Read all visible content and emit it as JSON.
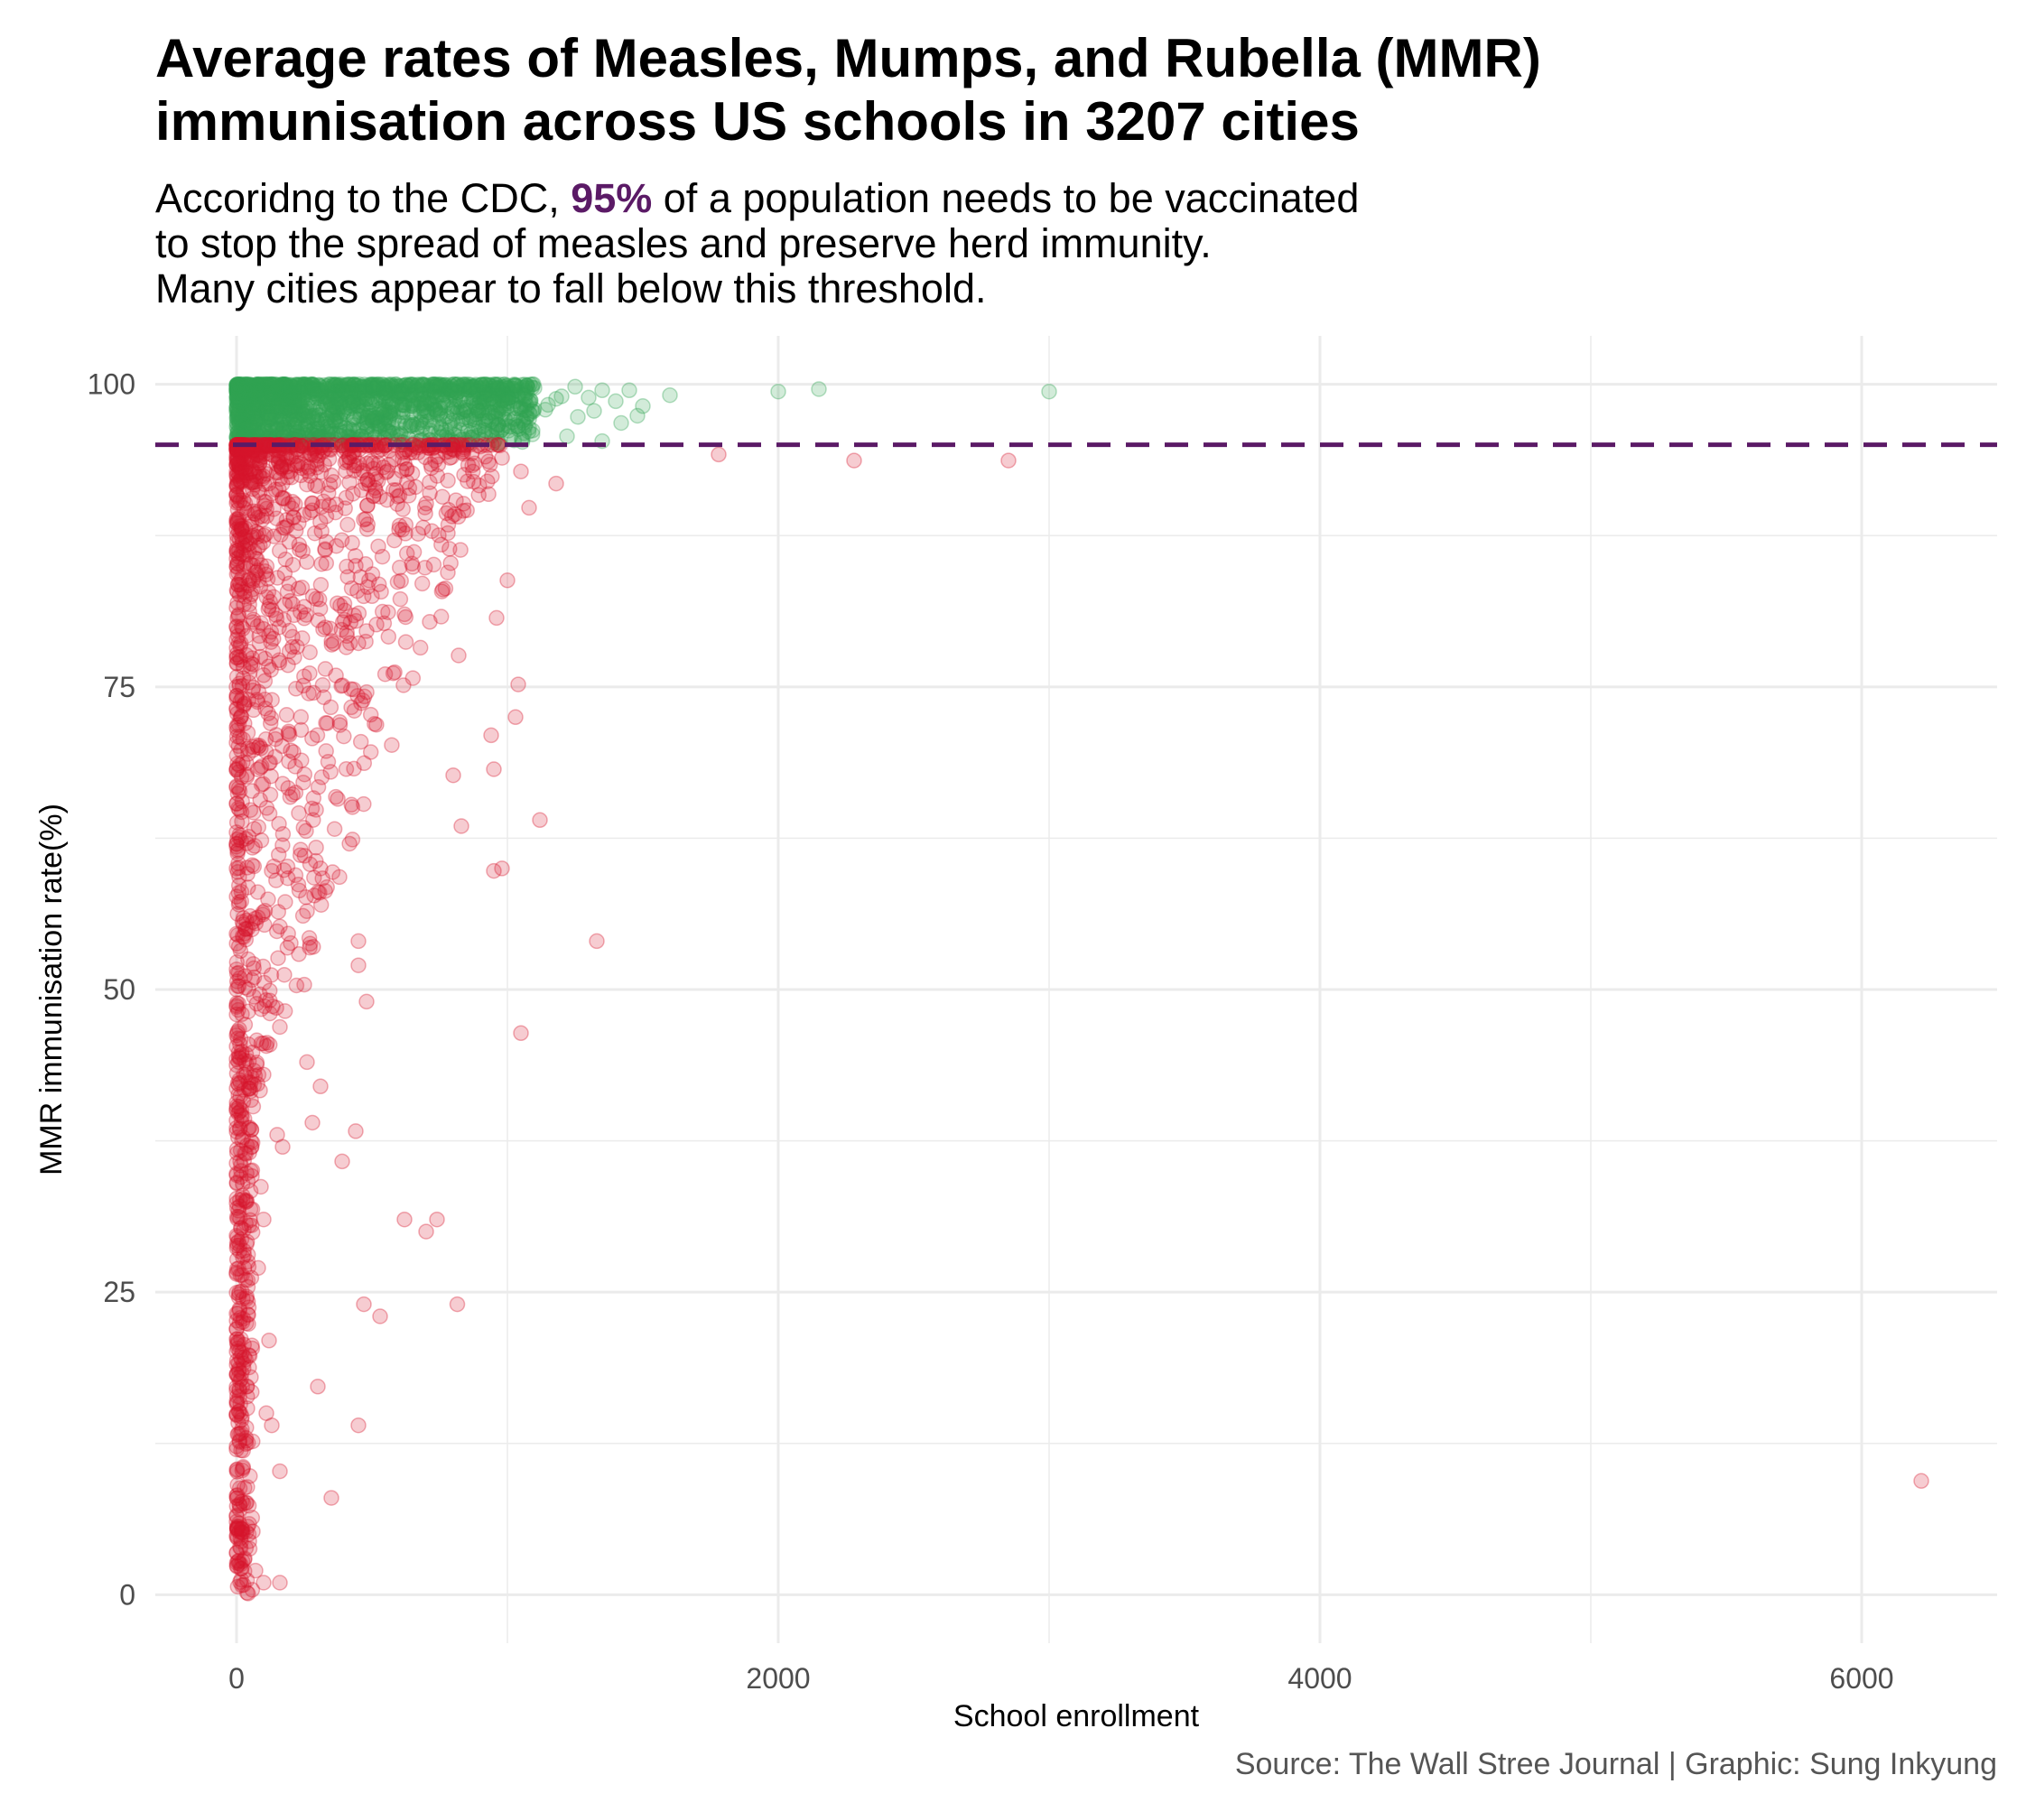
{
  "title": {
    "line1": "Average rates of Measles, Mumps, and Rubella (MMR)",
    "line2": "immunisation across US schools in 3207 cities"
  },
  "subtitle": {
    "line1_pre": "Accoridng to the CDC, ",
    "line1_highlight": "95%",
    "line1_post": " of a population needs to be vaccinated",
    "line2": "to stop the spread of measles and preserve herd immunity.",
    "line3": "Many cities appear to fall below this threshold."
  },
  "caption": "Source: The Wall Stree Journal | Graphic: Sung Inkyung",
  "colors": {
    "above": "#31a354",
    "below": "#d7152c",
    "threshold": "#5b1a66",
    "grid": "#ebebeb"
  },
  "chart_data": {
    "type": "scatter",
    "xlabel": "School enrollment",
    "ylabel": "MMR immunisation rate(%)",
    "xlim": [
      -300,
      6500
    ],
    "ylim": [
      -4,
      104
    ],
    "x_ticks": [
      0,
      2000,
      4000,
      6000
    ],
    "x_tick_labels": [
      "0",
      "2000",
      "4000",
      "6000"
    ],
    "y_ticks": [
      0,
      25,
      50,
      75,
      100
    ],
    "y_tick_labels": [
      "0",
      "25",
      "50",
      "75",
      "100"
    ],
    "threshold": 95,
    "grid": true,
    "legend": "none",
    "series": [
      {
        "group": "above",
        "points": [
          [
            1600,
            99.1
          ],
          [
            2000,
            99.4
          ],
          [
            2150,
            99.6
          ],
          [
            3000,
            99.4
          ],
          [
            1500,
            98.2
          ],
          [
            1450,
            99.5
          ],
          [
            1400,
            98.6
          ],
          [
            1350,
            99.5
          ],
          [
            1300,
            98.9
          ],
          [
            1250,
            99.8
          ],
          [
            1200,
            99.0
          ],
          [
            1150,
            98.3
          ],
          [
            1100,
            99.7
          ],
          [
            1050,
            97.2
          ],
          [
            1000,
            99.9
          ],
          [
            1350,
            95.3
          ],
          [
            1220,
            95.7
          ],
          [
            1180,
            98.8
          ],
          [
            1320,
            97.8
          ],
          [
            1420,
            96.8
          ],
          [
            1480,
            97.4
          ],
          [
            1080,
            96.4
          ],
          [
            1140,
            97.9
          ],
          [
            1260,
            97.3
          ]
        ],
        "dense_band": {
          "x_range": [
            0,
            1100
          ],
          "y_range": [
            95.1,
            100
          ],
          "count": 1600
        }
      },
      {
        "group": "below",
        "points": [
          [
            6220,
            9.4
          ],
          [
            2850,
            93.7
          ],
          [
            2280,
            93.7
          ],
          [
            1780,
            94.2
          ],
          [
            1330,
            54.0
          ],
          [
            1120,
            64.0
          ],
          [
            1050,
            46.4
          ],
          [
            1030,
            72.5
          ],
          [
            1040,
            75.2
          ],
          [
            1000,
            83.8
          ],
          [
            980,
            60.0
          ],
          [
            950,
            59.8
          ],
          [
            1080,
            89.8
          ],
          [
            1050,
            92.8
          ],
          [
            1180,
            91.8
          ],
          [
            950,
            68.2
          ],
          [
            940,
            71.0
          ],
          [
            960,
            80.7
          ],
          [
            800,
            67.7
          ],
          [
            830,
            63.5
          ],
          [
            620,
            31.0
          ],
          [
            700,
            30.0
          ],
          [
            740,
            31.0
          ],
          [
            815,
            24.0
          ],
          [
            530,
            23.0
          ],
          [
            470,
            24.0
          ],
          [
            450,
            14.0
          ],
          [
            440,
            38.3
          ],
          [
            390,
            35.8
          ],
          [
            480,
            49.0
          ],
          [
            450,
            52.0
          ],
          [
            450,
            54.0
          ],
          [
            310,
            42.0
          ],
          [
            280,
            39.0
          ],
          [
            300,
            17.2
          ],
          [
            350,
            8.0
          ],
          [
            250,
            50.4
          ],
          [
            260,
            44.0
          ],
          [
            170,
            37.0
          ],
          [
            150,
            38.0
          ],
          [
            160,
            10.2
          ],
          [
            130,
            14.0
          ],
          [
            120,
            21.0
          ],
          [
            100,
            31.0
          ],
          [
            90,
            33.7
          ],
          [
            80,
            27.0
          ],
          [
            110,
            15.0
          ],
          [
            160,
            55.2
          ],
          [
            130,
            59.8
          ],
          [
            310,
            60.0
          ],
          [
            20,
            20.0
          ],
          [
            40,
            15.4
          ],
          [
            30,
            3.0
          ],
          [
            45,
            5.0
          ],
          [
            100,
            1.0
          ],
          [
            160,
            1.0
          ],
          [
            70,
            2.0
          ],
          [
            10,
            25.0
          ],
          [
            0,
            40.0
          ],
          [
            0,
            50.0
          ],
          [
            0,
            60.0
          ],
          [
            0,
            66.7
          ],
          [
            0,
            75.0
          ],
          [
            0,
            80.0
          ],
          [
            400,
            81.3
          ],
          [
            440,
            85.0
          ],
          [
            620,
            81.0
          ],
          [
            760,
            90.7
          ],
          [
            780,
            87.7
          ],
          [
            820,
            77.6
          ],
          [
            600,
            88.0
          ],
          [
            500,
            82.5
          ]
        ],
        "dense_band": {
          "x_range": [
            0,
            1000
          ],
          "y_range": [
            0,
            95
          ],
          "count": 1500
        }
      }
    ]
  }
}
